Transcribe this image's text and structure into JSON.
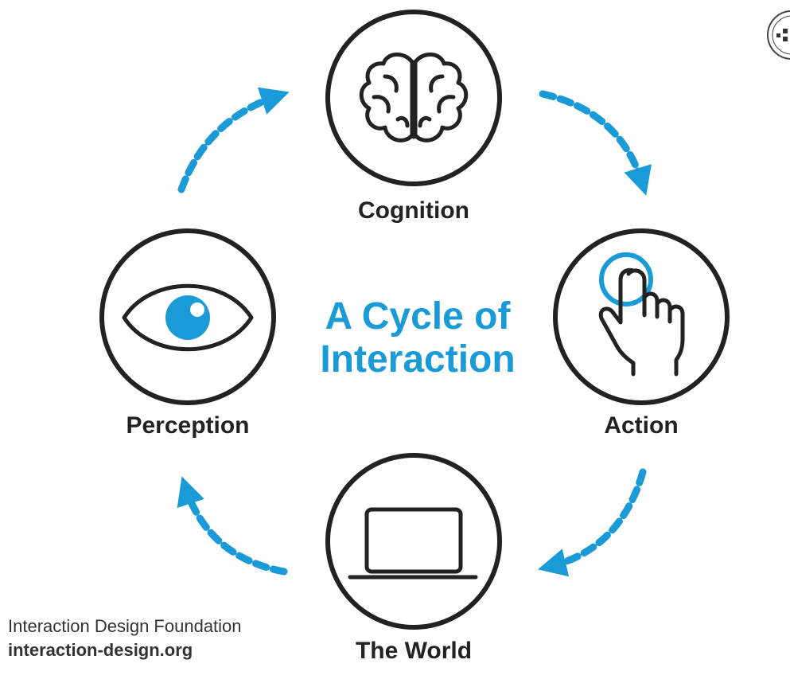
{
  "diagram": {
    "title_line1": "A Cycle of",
    "title_line2": "Interaction",
    "nodes": [
      {
        "label": "Cognition",
        "icon": "brain-icon"
      },
      {
        "label": "Action",
        "icon": "touch-hand-icon"
      },
      {
        "label": "The World",
        "icon": "laptop-icon"
      },
      {
        "label": "Perception",
        "icon": "eye-icon"
      }
    ],
    "arrows": [
      "perception-to-cognition",
      "cognition-to-action",
      "action-to-world",
      "world-to-perception"
    ]
  },
  "footer": {
    "organization": "Interaction Design Foundation",
    "website": "interaction-design.org"
  },
  "colors": {
    "accent": "#1a9ad7",
    "stroke": "#222222"
  }
}
